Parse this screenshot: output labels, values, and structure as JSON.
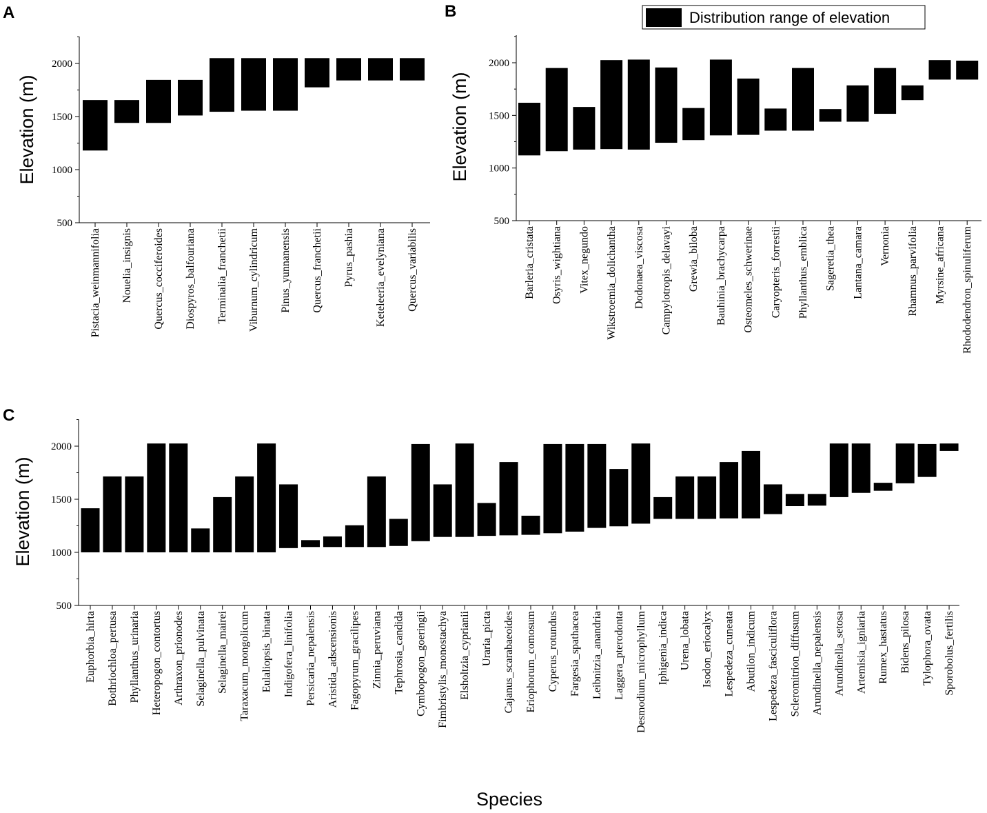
{
  "figure": {
    "bar_color": "#000000",
    "legend": {
      "label": "Distribution range of elevation",
      "placement": "top-right"
    }
  },
  "chart_data": [
    {
      "panel": "A",
      "type": "floating_bar",
      "ylabel": "Elevation (m)",
      "xlabel": "",
      "ylim": [
        500,
        2250
      ],
      "yticks": [
        500,
        1000,
        1500,
        2000
      ],
      "categories": [
        "Pistacia_weinmannifolia",
        "Nouelia_insignis",
        "Quercus_cocciferoides",
        "Diospyros_balfouriana",
        "Terminalia_franchetii",
        "Viburnum_cylindricum",
        "Pinus_yunnanensis",
        "Quercus_franchetii",
        "Pyrus_pashia",
        "Keteleeria_evelyniana",
        "Quercus_variabilis"
      ],
      "low": [
        1180,
        1440,
        1440,
        1510,
        1545,
        1555,
        1555,
        1775,
        1840,
        1840,
        1840
      ],
      "high": [
        1655,
        1655,
        1845,
        1845,
        2050,
        2050,
        2050,
        2050,
        2050,
        2050,
        2050
      ]
    },
    {
      "panel": "B",
      "type": "floating_bar",
      "ylabel": "Elevation (m)",
      "xlabel": "",
      "ylim": [
        500,
        2250
      ],
      "yticks": [
        500,
        1000,
        1500,
        2000
      ],
      "categories": [
        "Barleria_cristata",
        "Osyris_wightiana",
        "Vitex_negundo",
        "Wikstroemia_dolichantha",
        "Dodonaea_viscosa",
        "Campylotropis_delavayi",
        "Grewia_biloba",
        "Bauhinia_brachycarpa",
        "Osteomeles_schwerinae",
        "Caryopteris_forrestii",
        "Phyllanthus_emblica",
        "Sageretia_thea",
        "Lantana_camara",
        "Vernonia",
        "Rhamnus_parvifolia",
        "Myrsine_africana",
        "Rhododendron_spinuliferum"
      ],
      "low": [
        1120,
        1160,
        1175,
        1180,
        1175,
        1240,
        1265,
        1310,
        1315,
        1355,
        1355,
        1440,
        1440,
        1515,
        1645,
        1840,
        1840
      ],
      "high": [
        1620,
        1950,
        1580,
        2025,
        2030,
        1955,
        1570,
        2030,
        1850,
        1565,
        1950,
        1560,
        1785,
        1950,
        1785,
        2025,
        2020
      ]
    },
    {
      "panel": "C",
      "type": "floating_bar",
      "ylabel": "Elevation (m)",
      "xlabel": "Species",
      "ylim": [
        500,
        2250
      ],
      "yticks": [
        500,
        1000,
        1500,
        2000
      ],
      "categories": [
        "Euphorbia_hirta",
        "Bothriochloa_pertusa",
        "Phyllanthus_urinaria",
        "Heteropogon_contortus",
        "Arthraxon_prionodes",
        "Selaginella_pulvinata",
        "Selaginella_mairei",
        "Taraxacum_mongolicum",
        "Eulaliopsis_binata",
        "Indigofera_linifolia",
        "Persicaria_nepalensis",
        "Aristida_adscensionis",
        "Fagopyrum_gracilipes",
        "Zinnia_peruviana",
        "Tephrosia_candida",
        "Cymbopogon_goeringii",
        "Fimbristylis_monostachya",
        "Elsholtzia_cyprianii",
        "Uraria_picta",
        "Cajanus_scarabaeoides",
        "Eriophorum_comosum",
        "Cyperus_rotundus",
        "Fargesia_spathacea",
        "Leibnitzia_anandria",
        "Laggera_pterodonta",
        "Desmodium_microphyllum",
        "Iphigenia_indica",
        "Urena_lobata",
        "Isodon_eriocalyx",
        "Lespedeza_cuneata",
        "Abutilon_indicum",
        "Lespedeza_fasciculiflora",
        "Scleromitrion_diffusum",
        "Arundinella_nepalensis",
        "Arundinella_setosa",
        "Artemisia_igniaria",
        "Rumex_hastatus",
        "Bidens_pilosa",
        "Tylophora_ovata",
        "Sporobolus_fertilis"
      ],
      "low": [
        1000,
        1000,
        1000,
        1000,
        1000,
        1000,
        1000,
        1000,
        1000,
        1040,
        1050,
        1050,
        1050,
        1050,
        1060,
        1105,
        1145,
        1145,
        1155,
        1160,
        1165,
        1180,
        1195,
        1230,
        1245,
        1270,
        1315,
        1315,
        1315,
        1320,
        1320,
        1360,
        1435,
        1440,
        1520,
        1560,
        1580,
        1650,
        1710,
        1955
      ],
      "high": [
        1415,
        1715,
        1715,
        2025,
        2025,
        1225,
        1520,
        1715,
        2025,
        1640,
        1115,
        1150,
        1255,
        1715,
        1315,
        2020,
        1640,
        2025,
        1465,
        1850,
        1345,
        2020,
        2020,
        2020,
        1785,
        2025,
        1520,
        1715,
        1715,
        1850,
        1955,
        1640,
        1550,
        1550,
        2025,
        2025,
        1655,
        2025,
        2020,
        2025
      ]
    }
  ]
}
